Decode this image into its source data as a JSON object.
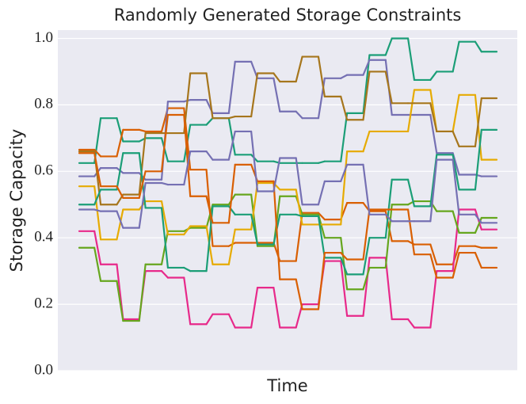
{
  "chart_data": {
    "type": "line",
    "title": "Randomly Generated Storage Constraints",
    "xlabel": "Time",
    "ylabel": "Storage Capacity",
    "ylim": [
      0,
      1.025
    ],
    "yticks": [
      {
        "value": 0,
        "label": "0.0"
      },
      0.2,
      0.4,
      0.6,
      0.8,
      {
        "value": 1,
        "label": "1.0"
      }
    ],
    "grid": true,
    "step": true,
    "series": [
      {
        "color": "#1b9e77",
        "values": [
          0.625,
          0.76,
          0.69,
          0.7,
          0.63,
          0.74,
          0.76,
          0.65,
          0.63,
          0.625,
          0.625,
          0.63,
          0.775,
          0.95,
          1.0,
          0.875,
          0.9,
          0.99,
          0.96
        ]
      },
      {
        "color": "#d95f02",
        "values": [
          0.665,
          0.645,
          0.725,
          0.72,
          0.79,
          0.605,
          0.375,
          0.385,
          0.385,
          0.33,
          0.475,
          0.455,
          0.505,
          0.48,
          0.39,
          0.38,
          0.32,
          0.375,
          0.37
        ]
      },
      {
        "color": "#7570b3",
        "values": [
          0.585,
          0.61,
          0.595,
          0.575,
          0.81,
          0.815,
          0.775,
          0.93,
          0.88,
          0.78,
          0.76,
          0.88,
          0.89,
          0.935,
          0.77,
          0.77,
          0.655,
          0.59,
          0.585
        ]
      },
      {
        "color": "#e7298a",
        "values": [
          0.42,
          0.32,
          0.155,
          0.3,
          0.28,
          0.14,
          0.17,
          0.13,
          0.25,
          0.13,
          0.2,
          0.33,
          0.165,
          0.34,
          0.155,
          0.13,
          0.3,
          0.485,
          0.425
        ]
      },
      {
        "color": "#66a61e",
        "values": [
          0.37,
          0.27,
          0.15,
          0.32,
          0.42,
          0.43,
          0.5,
          0.53,
          0.375,
          0.525,
          0.47,
          0.4,
          0.245,
          0.31,
          0.5,
          0.51,
          0.48,
          0.415,
          0.46
        ]
      },
      {
        "color": "#e6ab02",
        "values": [
          0.555,
          0.395,
          0.485,
          0.51,
          0.41,
          0.435,
          0.32,
          0.425,
          0.565,
          0.545,
          0.44,
          0.44,
          0.66,
          0.72,
          0.72,
          0.845,
          0.72,
          0.83,
          0.635
        ]
      },
      {
        "color": "#a6761d",
        "values": [
          0.66,
          0.5,
          0.53,
          0.715,
          0.715,
          0.895,
          0.76,
          0.765,
          0.895,
          0.87,
          0.945,
          0.825,
          0.755,
          0.9,
          0.805,
          0.805,
          0.72,
          0.675,
          0.82
        ]
      },
      {
        "color": "#1b9e77",
        "values": [
          0.5,
          0.545,
          0.655,
          0.49,
          0.31,
          0.3,
          0.495,
          0.47,
          0.38,
          0.47,
          0.465,
          0.34,
          0.29,
          0.4,
          0.575,
          0.495,
          0.65,
          0.545,
          0.725
        ]
      },
      {
        "color": "#d95f02",
        "values": [
          0.655,
          0.555,
          0.52,
          0.6,
          0.77,
          0.525,
          0.445,
          0.62,
          0.57,
          0.275,
          0.185,
          0.355,
          0.335,
          0.485,
          0.485,
          0.35,
          0.28,
          0.355,
          0.31
        ]
      },
      {
        "color": "#7570b3",
        "values": [
          0.485,
          0.48,
          0.43,
          0.565,
          0.56,
          0.66,
          0.635,
          0.72,
          0.54,
          0.64,
          0.5,
          0.57,
          0.62,
          0.47,
          0.45,
          0.45,
          0.635,
          0.47,
          0.445
        ]
      }
    ]
  }
}
